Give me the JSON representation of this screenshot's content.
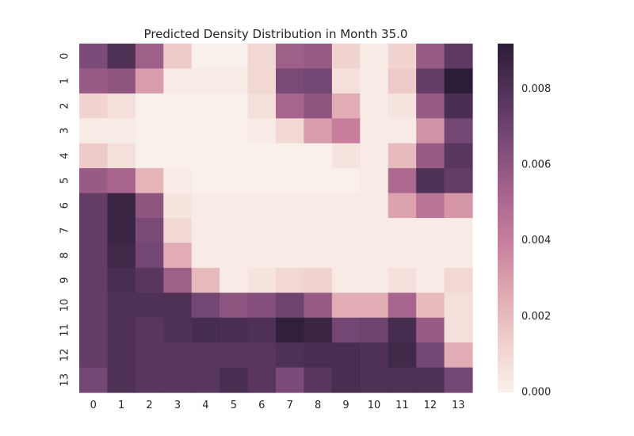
{
  "chart_data": {
    "type": "heatmap",
    "title": "Predicted Density Distribution in Month 35.0",
    "xlabel": "",
    "ylabel": "",
    "x_categories": [
      "0",
      "1",
      "2",
      "3",
      "4",
      "5",
      "6",
      "7",
      "8",
      "9",
      "10",
      "11",
      "12",
      "13"
    ],
    "y_categories": [
      "0",
      "1",
      "2",
      "3",
      "4",
      "5",
      "6",
      "7",
      "8",
      "9",
      "10",
      "11",
      "12",
      "13"
    ],
    "values": [
      [
        0.0065,
        0.008,
        0.0055,
        0.0015,
        0.0,
        0.0,
        0.001,
        0.0055,
        0.0057,
        0.0012,
        0.0002,
        0.0012,
        0.0057,
        0.0075
      ],
      [
        0.0057,
        0.006,
        0.003,
        0.0002,
        0.0002,
        0.0002,
        0.001,
        0.0066,
        0.0068,
        0.0007,
        0.0002,
        0.0015,
        0.0073,
        0.0092
      ],
      [
        0.0012,
        0.0007,
        0.0,
        0.0,
        0.0,
        0.0,
        0.0007,
        0.0052,
        0.006,
        0.0025,
        0.0002,
        0.0005,
        0.0057,
        0.0082
      ],
      [
        0.0002,
        0.0002,
        0.0,
        0.0,
        0.0,
        0.0,
        0.0002,
        0.001,
        0.003,
        0.004,
        0.0002,
        0.0002,
        0.0033,
        0.0068
      ],
      [
        0.0015,
        0.0007,
        0.0,
        0.0,
        0.0,
        0.0,
        0.0,
        0.0,
        0.0,
        0.0005,
        0.0002,
        0.002,
        0.0057,
        0.0077
      ],
      [
        0.0057,
        0.0052,
        0.0022,
        0.0002,
        0.0,
        0.0,
        0.0,
        0.0,
        0.0,
        0.0,
        0.0002,
        0.005,
        0.008,
        0.0073
      ],
      [
        0.0073,
        0.0087,
        0.006,
        0.0005,
        0.0002,
        0.0002,
        0.0002,
        0.0002,
        0.0002,
        0.0002,
        0.0002,
        0.0028,
        0.0045,
        0.0032
      ],
      [
        0.0073,
        0.0087,
        0.0066,
        0.001,
        0.0002,
        0.0002,
        0.0002,
        0.0002,
        0.0002,
        0.0002,
        0.0002,
        0.0002,
        0.0002,
        0.0002
      ],
      [
        0.0073,
        0.0085,
        0.0068,
        0.0025,
        0.0002,
        0.0002,
        0.0002,
        0.0002,
        0.0002,
        0.0002,
        0.0002,
        0.0002,
        0.0002,
        0.0002
      ],
      [
        0.0073,
        0.0082,
        0.0077,
        0.0055,
        0.002,
        0.0002,
        0.0005,
        0.001,
        0.0012,
        0.0002,
        0.0002,
        0.0007,
        0.0002,
        0.001
      ],
      [
        0.0073,
        0.008,
        0.008,
        0.008,
        0.0068,
        0.006,
        0.0063,
        0.007,
        0.0057,
        0.0025,
        0.0025,
        0.0052,
        0.002,
        0.0007
      ],
      [
        0.0073,
        0.008,
        0.0077,
        0.008,
        0.0083,
        0.0082,
        0.008,
        0.009,
        0.0087,
        0.0068,
        0.007,
        0.0083,
        0.0057,
        0.0007
      ],
      [
        0.0073,
        0.008,
        0.0077,
        0.0077,
        0.0077,
        0.0077,
        0.0077,
        0.008,
        0.0082,
        0.0082,
        0.008,
        0.0085,
        0.0068,
        0.0025
      ],
      [
        0.0068,
        0.008,
        0.0077,
        0.0077,
        0.0077,
        0.0082,
        0.0077,
        0.0065,
        0.0077,
        0.0082,
        0.008,
        0.008,
        0.008,
        0.0068
      ]
    ],
    "colorbar": {
      "vmin": 0.0,
      "vmax": 0.0092,
      "ticks": [
        0.0,
        0.002,
        0.004,
        0.006,
        0.008
      ],
      "tick_labels": [
        "0.000",
        "0.002",
        "0.004",
        "0.006",
        "0.008"
      ]
    },
    "colors": {
      "low": "#faf0eb",
      "stops": [
        "#faf0eb",
        "#f0d0cc",
        "#dfa8b0",
        "#c87f9d",
        "#a6648d",
        "#7b4a78",
        "#523359",
        "#2b1d37"
      ],
      "high": "#2b1d37"
    },
    "grid": false
  }
}
